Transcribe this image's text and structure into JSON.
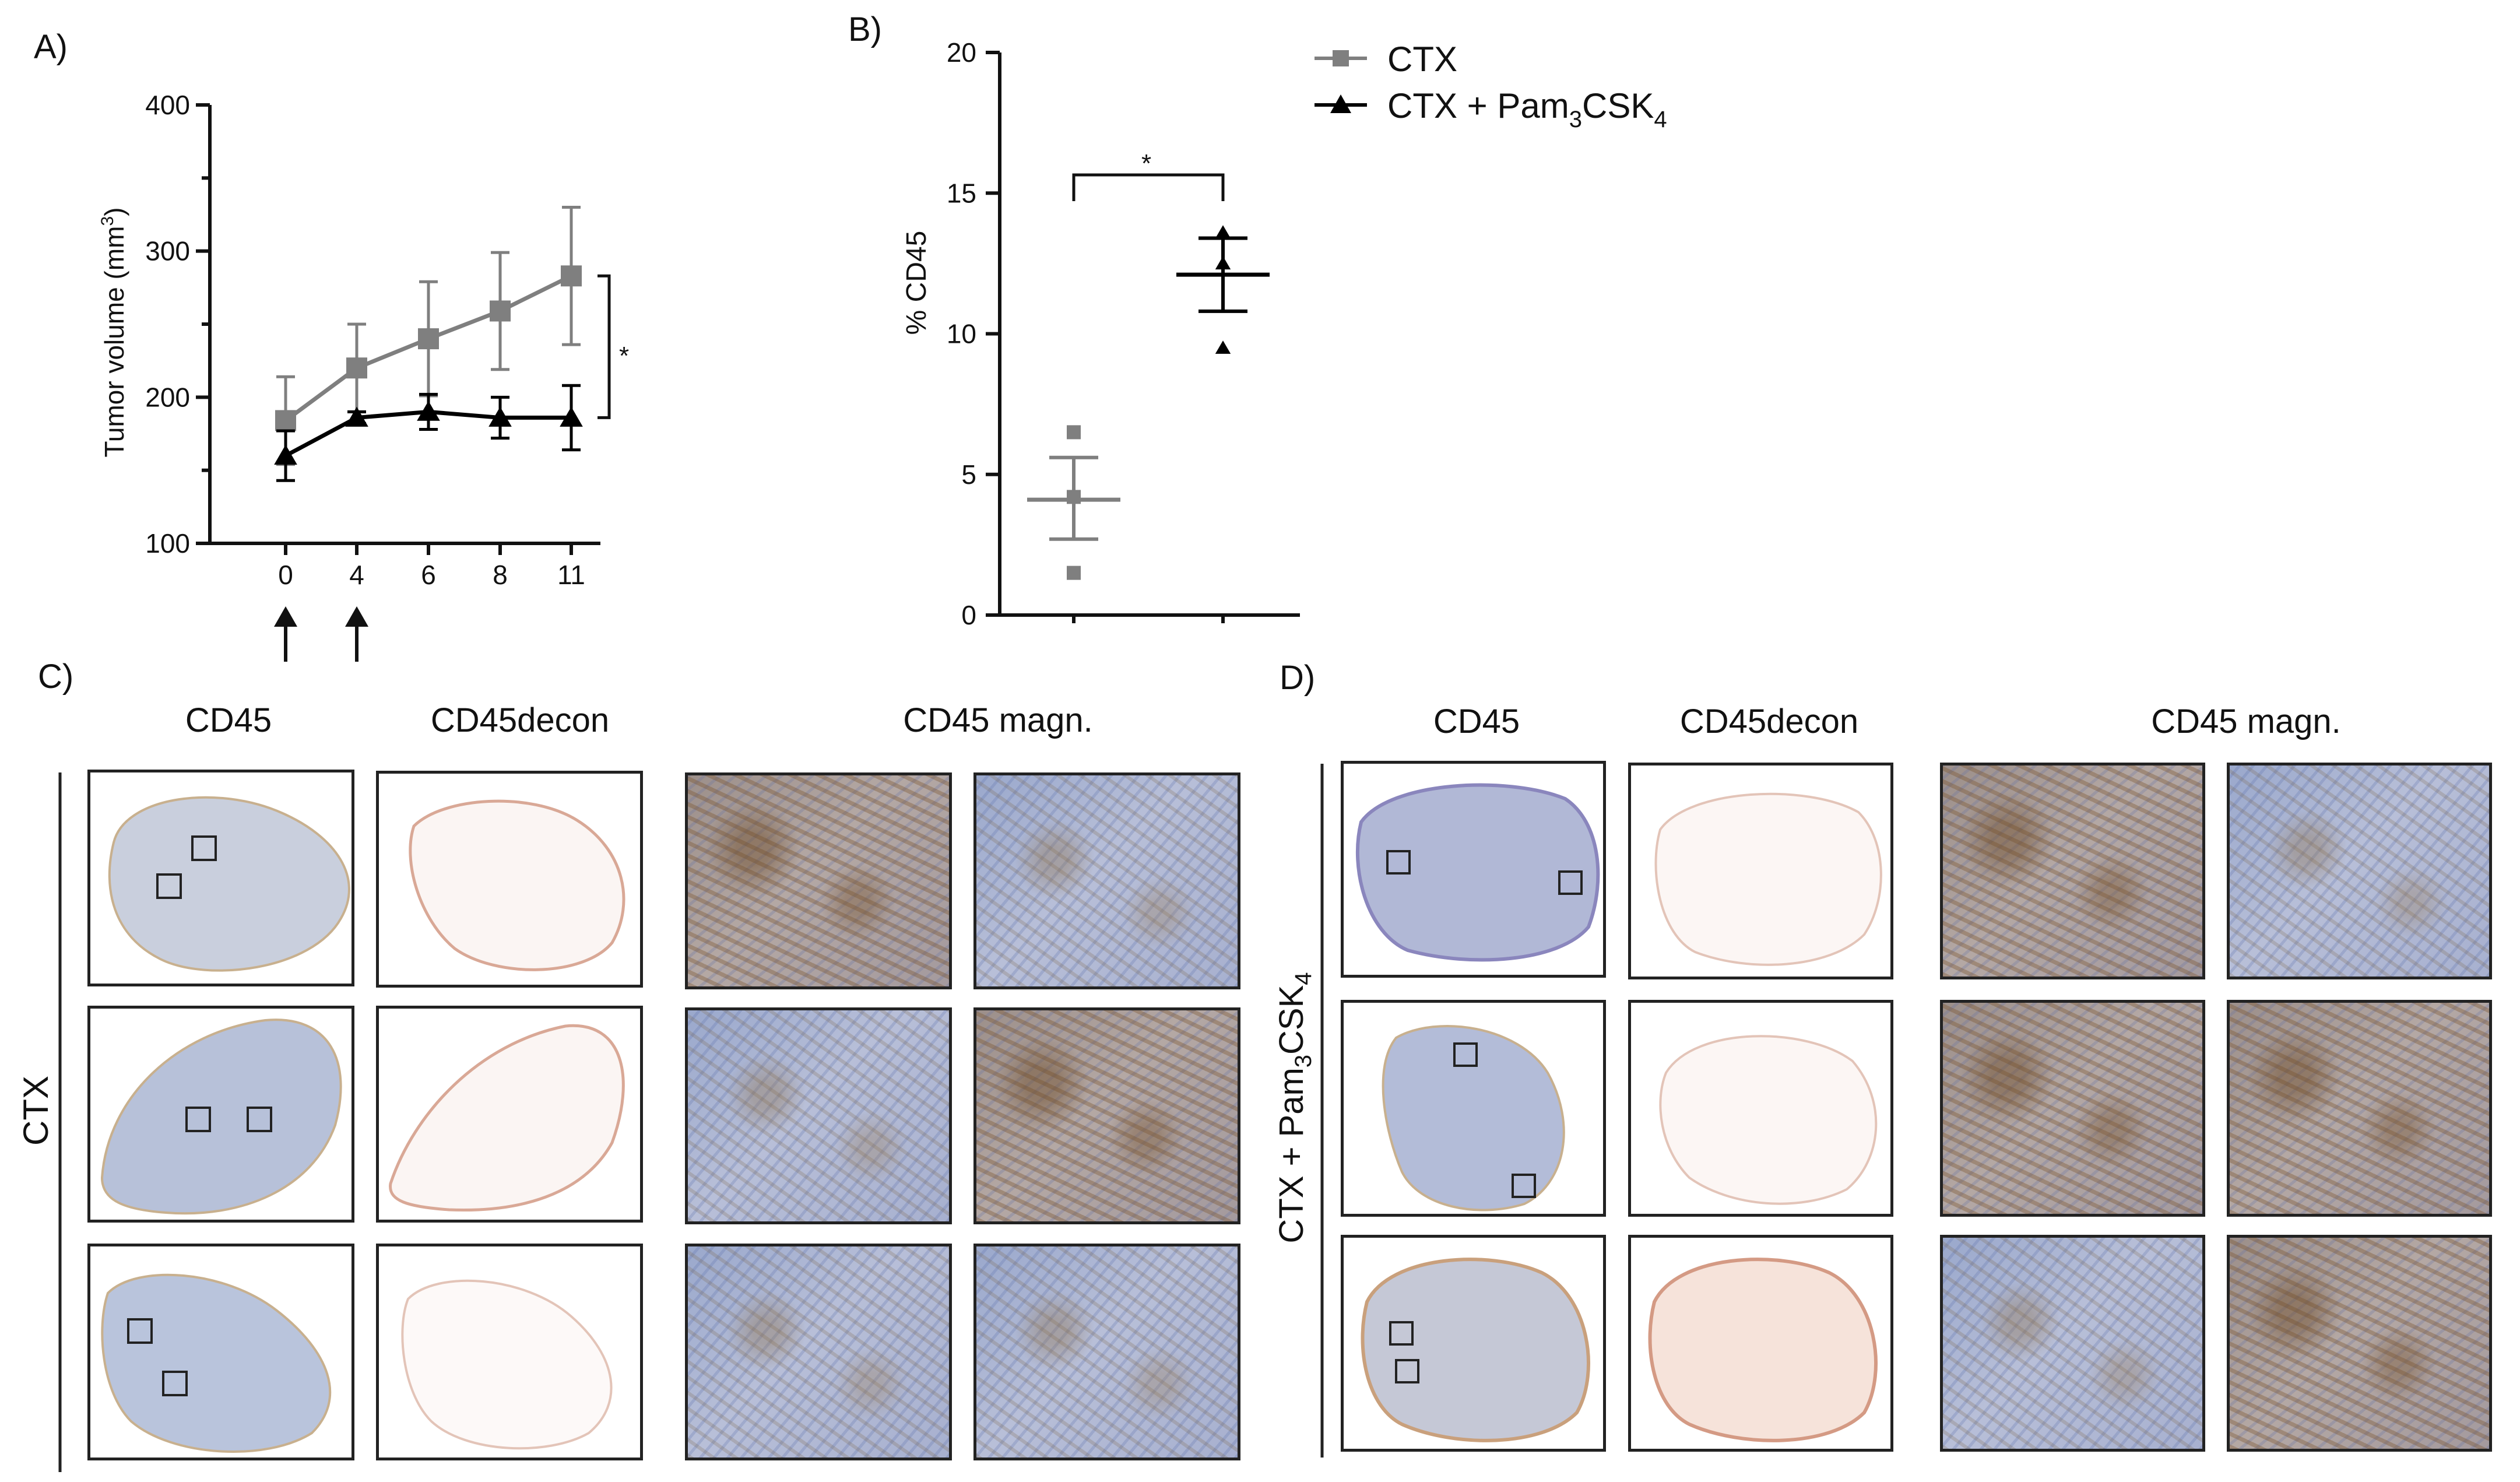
{
  "panels": {
    "a": "A)",
    "b": "B)",
    "c": "C)",
    "d": "D)"
  },
  "legend": [
    {
      "name": "CTX",
      "color": "#7f7f7f",
      "marker": "square"
    },
    {
      "name": "CTX + Pam",
      "sub1": "3",
      "mid": "CSK",
      "sub2": "4",
      "color": "#000000",
      "marker": "triangle"
    }
  ],
  "chart_data": [
    {
      "type": "line",
      "panel": "A)",
      "ylabel": "Tumor volume (mm",
      "ylabel_sup": "3",
      "ylabel_close": ")",
      "ylim": [
        100,
        400
      ],
      "yticks": [
        "100",
        "200",
        "300",
        "400"
      ],
      "categories": [
        "0",
        "4",
        "6",
        "8",
        "11"
      ],
      "series": [
        {
          "name": "CTX",
          "color": "#7f7f7f",
          "marker": "square",
          "values": [
            184,
            220,
            240,
            259,
            283
          ],
          "errors": [
            30,
            30,
            39,
            40,
            47
          ]
        },
        {
          "name": "CTX + Pam3CSK4",
          "color": "#000000",
          "marker": "triangle",
          "values": [
            160,
            186,
            190,
            186,
            186
          ],
          "errors": [
            17,
            4,
            12,
            14,
            22
          ]
        }
      ],
      "treatment_days": [
        "0",
        "4"
      ],
      "significance": "*"
    },
    {
      "type": "scatter",
      "panel": "B)",
      "ylabel": "% CD45",
      "ylim": [
        0,
        20
      ],
      "yticks": [
        "0",
        "5",
        "10",
        "15",
        "20"
      ],
      "groups": [
        {
          "name": "CTX",
          "color": "#7f7f7f",
          "marker": "square",
          "points": [
            6.5,
            4.2,
            1.5
          ],
          "mean": 4.1,
          "sem_low": 2.7,
          "sem_high": 5.6
        },
        {
          "name": "CTX + Pam3CSK4",
          "color": "#000000",
          "marker": "triangle",
          "points": [
            13.6,
            12.5,
            9.5
          ],
          "mean": 12.1,
          "sem_low": 10.8,
          "sem_high": 13.4
        }
      ],
      "significance": "*"
    }
  ],
  "micrographs": {
    "col_cd45": "CD45",
    "col_decon": "CD45decon",
    "col_magn": "CD45 magn.",
    "row_c": "CTX",
    "row_d_a": "CTX + Pam",
    "row_d_sub1": "3",
    "row_d_b": "CSK",
    "row_d_sub2": "4"
  }
}
